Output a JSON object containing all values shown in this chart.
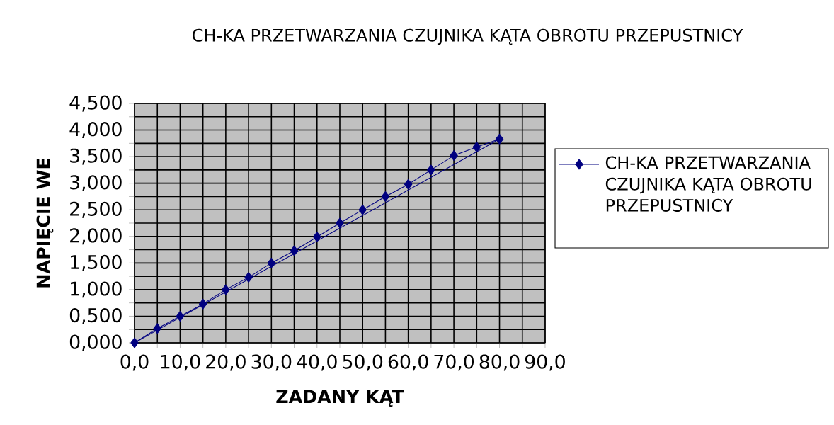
{
  "chart_data": {
    "type": "line",
    "title": "CH-KA PRZETWARZANIA CZUJNIKA KĄTA OBROTU PRZEPUSTNICY",
    "xlabel": "ZADANY KĄT",
    "ylabel": "NAPIĘCIE WE",
    "series": [
      {
        "name": "CH-KA PRZETWARZANIA CZUJNIKA KĄTA OBROTU PRZEPUSTNICY",
        "color": "#000080",
        "x": [
          0,
          5,
          10,
          15,
          20,
          25,
          30,
          35,
          40,
          45,
          50,
          55,
          60,
          65,
          70,
          75,
          80
        ],
        "values": [
          0,
          0.27,
          0.5,
          0.73,
          1.0,
          1.23,
          1.5,
          1.73,
          1.99,
          2.25,
          2.5,
          2.75,
          2.98,
          3.25,
          3.52,
          3.68,
          3.83
        ]
      },
      {
        "color": "#000080",
        "x": [
          80,
          0
        ],
        "values": [
          3.83,
          0
        ],
        "marker": "none"
      }
    ],
    "xlim": [
      0,
      90
    ],
    "ylim": [
      0,
      4.5
    ],
    "xticks": [
      {
        "value": 0,
        "label": "0,0"
      },
      {
        "value": 5,
        "label": null
      },
      {
        "value": 10,
        "label": "10,0"
      },
      {
        "value": 15,
        "label": null
      },
      {
        "value": 20,
        "label": "20,0"
      },
      {
        "value": 25,
        "label": null
      },
      {
        "value": 30,
        "label": "30,0"
      },
      {
        "value": 35,
        "label": null
      },
      {
        "value": 40,
        "label": "40,0"
      },
      {
        "value": 45,
        "label": null
      },
      {
        "value": 50,
        "label": "50,0"
      },
      {
        "value": 55,
        "label": null
      },
      {
        "value": 60,
        "label": "60,0"
      },
      {
        "value": 65,
        "label": null
      },
      {
        "value": 70,
        "label": "70,0"
      },
      {
        "value": 75,
        "label": null
      },
      {
        "value": 80,
        "label": "80,0"
      },
      {
        "value": 85,
        "label": null
      },
      {
        "value": 90,
        "label": "90,0"
      }
    ],
    "yticks": [
      {
        "value": 0,
        "label": "0,000"
      },
      {
        "value": 0.25,
        "label": null
      },
      {
        "value": 0.5,
        "label": "0,500"
      },
      {
        "value": 0.75,
        "label": null
      },
      {
        "value": 1,
        "label": "1,000"
      },
      {
        "value": 1.25,
        "label": null
      },
      {
        "value": 1.5,
        "label": "1,500"
      },
      {
        "value": 1.75,
        "label": null
      },
      {
        "value": 2,
        "label": "2,000"
      },
      {
        "value": 2.25,
        "label": null
      },
      {
        "value": 2.5,
        "label": "2,500"
      },
      {
        "value": 2.75,
        "label": null
      },
      {
        "value": 3,
        "label": "3,000"
      },
      {
        "value": 3.25,
        "label": null
      },
      {
        "value": 3.5,
        "label": "3,500"
      },
      {
        "value": 3.75,
        "label": null
      },
      {
        "value": 4,
        "label": "4,000"
      },
      {
        "value": 4.25,
        "label": null
      },
      {
        "value": 4.5,
        "label": "4,500"
      }
    ],
    "grid": true,
    "legend": "right",
    "marker": "diamond",
    "line_style": "solid"
  }
}
